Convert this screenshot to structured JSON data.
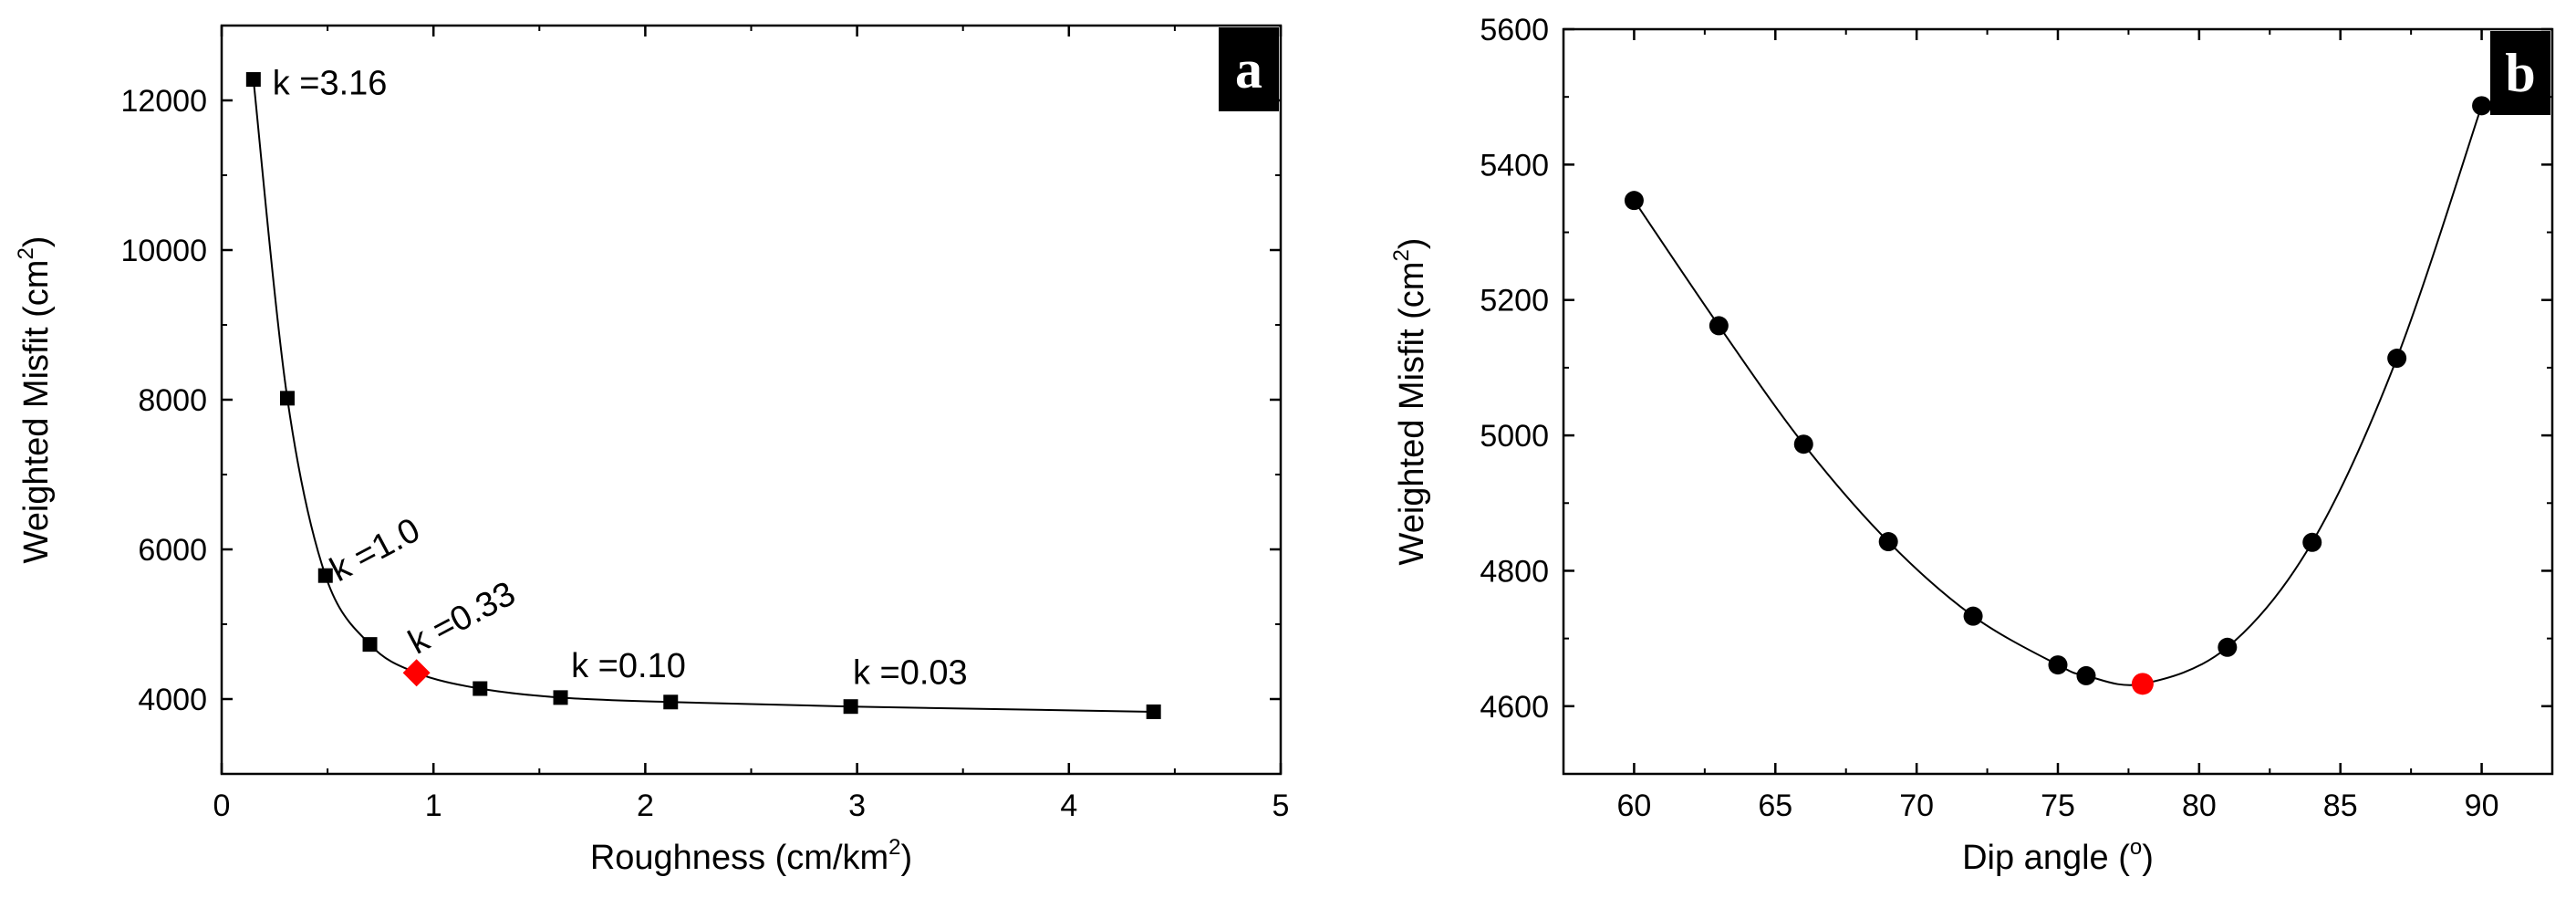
{
  "chart_data": [
    {
      "type": "line",
      "panel_label": "a",
      "xlabel": "Roughness (cm/km",
      "xlabel_sup": "2",
      "ylabel": "Weighted Misfit (cm",
      "ylabel_sup": "2",
      "xlim": [
        0,
        5
      ],
      "ylim": [
        3000,
        13000
      ],
      "xticks": [
        "0",
        "1",
        "2",
        "3",
        "4",
        "5"
      ],
      "yticks": [
        "4000",
        "6000",
        "8000",
        "10000",
        "12000"
      ],
      "series": [
        {
          "x": [
            0.15,
            0.31,
            0.49,
            0.7,
            0.92,
            1.22,
            1.6,
            2.12,
            2.97,
            4.4
          ],
          "y": [
            12280,
            8020,
            5650,
            4730,
            4350,
            4140,
            4020,
            3960,
            3900,
            3830
          ],
          "marker": "square",
          "color": "#000000"
        }
      ],
      "highlight": {
        "x": 0.92,
        "y": 4350,
        "marker": "diamond",
        "color": "#ff0000"
      },
      "annotations": [
        {
          "text": "k =3.16",
          "x": 0.24,
          "y": 12080,
          "rotate": 0
        },
        {
          "text": "k =1.0",
          "x": 0.55,
          "y": 5560,
          "rotate": -28
        },
        {
          "text": "k =0.33",
          "x": 0.92,
          "y": 4590,
          "rotate": -28
        },
        {
          "text": "k =0.10",
          "x": 1.65,
          "y": 4290,
          "rotate": 0
        },
        {
          "text": "k =0.03",
          "x": 2.98,
          "y": 4200,
          "rotate": 0
        }
      ]
    },
    {
      "type": "line",
      "panel_label": "b",
      "xlabel": "Dip angle (",
      "xlabel_sup": "o",
      "xlabel_end": ")",
      "ylabel": "Weighted Misfit (cm",
      "ylabel_sup": "2",
      "xlim": [
        57.5,
        92.5
      ],
      "ylim": [
        4500,
        5600
      ],
      "xticks": [
        "60",
        "65",
        "70",
        "75",
        "80",
        "85",
        "90"
      ],
      "yticks": [
        "4600",
        "4800",
        "5000",
        "5200",
        "5400",
        "5600"
      ],
      "series": [
        {
          "x": [
            60,
            63,
            66,
            69,
            72,
            75,
            76,
            78,
            81,
            84,
            87,
            90
          ],
          "y": [
            5347,
            5162,
            4987,
            4843,
            4733,
            4661,
            4645,
            4633,
            4687,
            4842,
            5114,
            5487
          ],
          "marker": "circle",
          "color": "#000000"
        }
      ],
      "highlight": {
        "x": 78,
        "y": 4633,
        "marker": "circle",
        "color": "#ff0000"
      }
    }
  ]
}
